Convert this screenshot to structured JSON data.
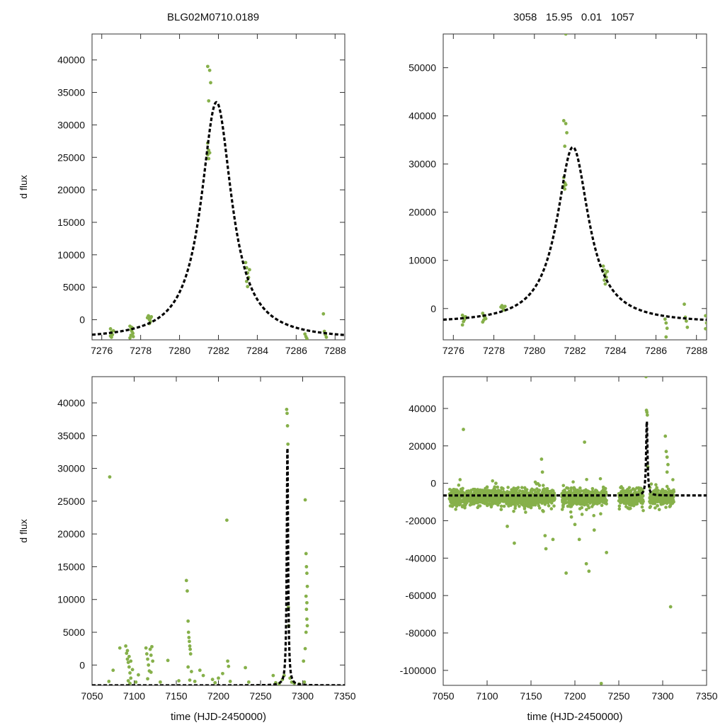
{
  "header": {
    "left_title": "BLG02M0710.0189",
    "right_title": "3058   15.95   0.01   1057"
  },
  "colors": {
    "points": "#86b04a",
    "model": "#000000",
    "axes": "#333333"
  },
  "chart_data": [
    {
      "type": "scatter",
      "panel": "top-left",
      "title": "BLG02M0710.0189",
      "xlabel": "",
      "ylabel": "d flux",
      "xlim": [
        7275.5,
        7288.5
      ],
      "ylim": [
        -3100,
        44000
      ],
      "xticks": [
        7276,
        7278,
        7280,
        7282,
        7284,
        7286,
        7288
      ],
      "yticks": [
        0,
        5000,
        10000,
        15000,
        20000,
        25000,
        30000,
        35000,
        40000
      ],
      "model": {
        "t0": 7281.9,
        "peak": 33500,
        "base": -3100,
        "width": 0.95,
        "style": "dashed"
      },
      "points": [
        [
          7276.45,
          -1400
        ],
        [
          7276.5,
          -1900
        ],
        [
          7276.55,
          -2300
        ],
        [
          7276.5,
          -2700
        ],
        [
          7276.6,
          -1700
        ],
        [
          7276.45,
          -2500
        ],
        [
          7277.45,
          -1000
        ],
        [
          7277.5,
          -1500
        ],
        [
          7277.55,
          -1800
        ],
        [
          7277.6,
          -2100
        ],
        [
          7277.5,
          -2400
        ],
        [
          7277.45,
          -2800
        ],
        [
          7277.55,
          -1200
        ],
        [
          7277.62,
          -2600
        ],
        [
          7278.35,
          300
        ],
        [
          7278.4,
          600
        ],
        [
          7278.45,
          0
        ],
        [
          7278.5,
          -300
        ],
        [
          7278.55,
          450
        ],
        [
          7278.45,
          -600
        ],
        [
          7278.5,
          200
        ],
        [
          7281.45,
          39000
        ],
        [
          7281.55,
          38400
        ],
        [
          7281.6,
          36500
        ],
        [
          7281.5,
          33700
        ],
        [
          7281.45,
          27200
        ],
        [
          7281.5,
          26100
        ],
        [
          7281.55,
          25700
        ],
        [
          7281.45,
          25400
        ],
        [
          7281.5,
          24800
        ],
        [
          7283.4,
          8800
        ],
        [
          7283.45,
          8000
        ],
        [
          7283.5,
          7200
        ],
        [
          7283.55,
          6500
        ],
        [
          7283.45,
          5900
        ],
        [
          7283.5,
          5100
        ],
        [
          7283.6,
          7700
        ],
        [
          7286.45,
          -2200
        ],
        [
          7286.5,
          -2600
        ],
        [
          7286.55,
          -2900
        ],
        [
          7287.4,
          900
        ],
        [
          7287.45,
          -1800
        ],
        [
          7287.5,
          -2300
        ],
        [
          7287.55,
          -2700
        ]
      ]
    },
    {
      "type": "scatter",
      "panel": "top-right",
      "title": "3058   15.95   0.01   1057",
      "xlabel": "",
      "ylabel": "",
      "xlim": [
        7275.5,
        7288.5
      ],
      "ylim": [
        -6500,
        57000
      ],
      "xticks": [
        7276,
        7278,
        7280,
        7282,
        7284,
        7286,
        7288
      ],
      "yticks": [
        0,
        10000,
        20000,
        30000,
        40000,
        50000
      ],
      "model": {
        "t0": 7281.9,
        "peak": 33500,
        "base": -3100,
        "width": 0.95,
        "style": "dashed"
      },
      "points": [
        [
          7276.45,
          -1400
        ],
        [
          7276.5,
          -1900
        ],
        [
          7276.55,
          -2300
        ],
        [
          7276.5,
          -2700
        ],
        [
          7276.6,
          -1700
        ],
        [
          7276.45,
          -3400
        ],
        [
          7277.45,
          -1000
        ],
        [
          7277.5,
          -1500
        ],
        [
          7277.55,
          -1800
        ],
        [
          7277.6,
          -2100
        ],
        [
          7277.5,
          -2400
        ],
        [
          7277.45,
          -2800
        ],
        [
          7278.35,
          300
        ],
        [
          7278.4,
          600
        ],
        [
          7278.45,
          0
        ],
        [
          7278.5,
          -300
        ],
        [
          7278.55,
          450
        ],
        [
          7281.55,
          57000
        ],
        [
          7281.45,
          39000
        ],
        [
          7281.55,
          38400
        ],
        [
          7281.6,
          36500
        ],
        [
          7281.5,
          33700
        ],
        [
          7281.45,
          27200
        ],
        [
          7281.5,
          26100
        ],
        [
          7281.55,
          25700
        ],
        [
          7281.45,
          25400
        ],
        [
          7281.5,
          24800
        ],
        [
          7283.4,
          8800
        ],
        [
          7283.45,
          8000
        ],
        [
          7283.5,
          7200
        ],
        [
          7283.55,
          6500
        ],
        [
          7283.45,
          5900
        ],
        [
          7283.5,
          5100
        ],
        [
          7283.6,
          7700
        ],
        [
          7286.45,
          -2200
        ],
        [
          7286.5,
          -3000
        ],
        [
          7286.55,
          -4100
        ],
        [
          7286.5,
          -5900
        ],
        [
          7287.4,
          900
        ],
        [
          7287.45,
          -1800
        ],
        [
          7287.5,
          -2600
        ],
        [
          7287.55,
          -3900
        ],
        [
          7288.45,
          -1500
        ],
        [
          7288.5,
          -3000
        ],
        [
          7288.45,
          -4200
        ]
      ]
    },
    {
      "type": "scatter",
      "panel": "bottom-left",
      "xlabel": "time (HJD-2450000)",
      "ylabel": "d flux",
      "xlim": [
        7050,
        7350
      ],
      "ylim": [
        -3100,
        44000
      ],
      "xticks": [
        7050,
        7100,
        7150,
        7200,
        7250,
        7300,
        7350
      ],
      "yticks": [
        0,
        5000,
        10000,
        15000,
        20000,
        25000,
        30000,
        35000,
        40000
      ],
      "model": {
        "t0": 7281.9,
        "peak": 33500,
        "base": -3100,
        "width": 0.95,
        "style": "dashed"
      },
      "points": [
        [
          7070,
          -2500
        ],
        [
          7071,
          28700
        ],
        [
          7075,
          -800
        ],
        [
          7083,
          2600
        ],
        [
          7090,
          2900
        ],
        [
          7091,
          1800
        ],
        [
          7092,
          900
        ],
        [
          7093,
          400
        ],
        [
          7094,
          -300
        ],
        [
          7095,
          -1200
        ],
        [
          7096,
          -2000
        ],
        [
          7092,
          2200
        ],
        [
          7094,
          1300
        ],
        [
          7096,
          600
        ],
        [
          7098,
          -700
        ],
        [
          7093,
          -2400
        ],
        [
          7095,
          -2800
        ],
        [
          7102,
          -2600
        ],
        [
          7105,
          -1500
        ],
        [
          7114,
          2600
        ],
        [
          7115,
          1700
        ],
        [
          7116,
          900
        ],
        [
          7117,
          0
        ],
        [
          7118,
          -900
        ],
        [
          7116,
          -2100
        ],
        [
          7119,
          2400
        ],
        [
          7120,
          1500
        ],
        [
          7121,
          2800
        ],
        [
          7122,
          600
        ],
        [
          7120,
          -1100
        ],
        [
          7131,
          -2600
        ],
        [
          7140,
          700
        ],
        [
          7153,
          -2400
        ],
        [
          7162,
          12900
        ],
        [
          7163,
          11300
        ],
        [
          7164,
          6700
        ],
        [
          7164.5,
          5000
        ],
        [
          7165,
          4200
        ],
        [
          7165.5,
          3600
        ],
        [
          7166,
          2900
        ],
        [
          7166.5,
          2400
        ],
        [
          7167,
          1700
        ],
        [
          7164,
          -300
        ],
        [
          7166,
          -2300
        ],
        [
          7168,
          -1000
        ],
        [
          7172,
          -2500
        ],
        [
          7178,
          -800
        ],
        [
          7182,
          -1600
        ],
        [
          7193,
          -2200
        ],
        [
          7196,
          -2700
        ],
        [
          7200,
          -2000
        ],
        [
          7205,
          -1300
        ],
        [
          7210,
          22100
        ],
        [
          7211,
          600
        ],
        [
          7212,
          -200
        ],
        [
          7214,
          -2500
        ],
        [
          7232,
          -400
        ],
        [
          7236,
          -2600
        ],
        [
          7265,
          -1600
        ],
        [
          7268,
          -2700
        ],
        [
          7272,
          -2900
        ],
        [
          7276,
          -2200
        ],
        [
          7278,
          -1600
        ],
        [
          7281,
          39000
        ],
        [
          7281.5,
          38400
        ],
        [
          7282,
          36500
        ],
        [
          7282.5,
          33700
        ],
        [
          7283,
          8800
        ],
        [
          7283.5,
          6000
        ],
        [
          7285,
          -2000
        ],
        [
          7287,
          -2600
        ],
        [
          7290,
          -2800
        ],
        [
          7296,
          -2900
        ],
        [
          7303,
          25200
        ],
        [
          7304,
          17000
        ],
        [
          7304.5,
          15000
        ],
        [
          7305,
          14000
        ],
        [
          7305.5,
          12000
        ],
        [
          7304,
          10500
        ],
        [
          7305,
          9500
        ],
        [
          7304.5,
          8500
        ],
        [
          7305,
          7000
        ],
        [
          7305.5,
          6000
        ],
        [
          7304,
          5000
        ],
        [
          7303,
          2500
        ],
        [
          7301,
          600
        ],
        [
          7302,
          -2600
        ]
      ]
    },
    {
      "type": "scatter",
      "panel": "bottom-right",
      "xlabel": "time (HJD-2450000)",
      "ylabel": "",
      "xlim": [
        7050,
        7350
      ],
      "ylim": [
        -108000,
        57000
      ],
      "xticks": [
        7050,
        7100,
        7150,
        7200,
        7250,
        7300,
        7350
      ],
      "yticks": [
        -100000,
        -80000,
        -60000,
        -40000,
        -20000,
        0,
        20000,
        40000
      ],
      "model": {
        "t0": 7281.9,
        "peak": 33500,
        "base": -6500,
        "width": 0.95,
        "style": "dashed"
      },
      "baseline_band": {
        "segments": [
          [
            7057,
            7177
          ],
          [
            7185,
            7236
          ],
          [
            7250,
            7278
          ],
          [
            7285,
            7313
          ]
        ],
        "center": -7500,
        "spread": 3000
      },
      "points": [
        [
          7073,
          28800
        ],
        [
          7100,
          -2000
        ],
        [
          7110,
          0
        ],
        [
          7116,
          -14000
        ],
        [
          7123,
          -23000
        ],
        [
          7131,
          -32000
        ],
        [
          7150,
          -13000
        ],
        [
          7162,
          12900
        ],
        [
          7163,
          6000
        ],
        [
          7164,
          -15000
        ],
        [
          7166,
          -28000
        ],
        [
          7167,
          -35000
        ],
        [
          7175,
          -30000
        ],
        [
          7190,
          -48000
        ],
        [
          7196,
          -18000
        ],
        [
          7200,
          -22000
        ],
        [
          7205,
          -30000
        ],
        [
          7211,
          22000
        ],
        [
          7213,
          -43000
        ],
        [
          7216,
          -47000
        ],
        [
          7222,
          -25000
        ],
        [
          7230,
          -107000
        ],
        [
          7236,
          -37000
        ],
        [
          7281,
          57000
        ],
        [
          7281.5,
          39000
        ],
        [
          7282,
          38000
        ],
        [
          7282.5,
          36500
        ],
        [
          7283,
          8800
        ],
        [
          7294,
          -12000
        ],
        [
          7303,
          25200
        ],
        [
          7304,
          17000
        ],
        [
          7305,
          14000
        ],
        [
          7306,
          10000
        ],
        [
          7305,
          6000
        ],
        [
          7309,
          -66000
        ]
      ]
    }
  ]
}
